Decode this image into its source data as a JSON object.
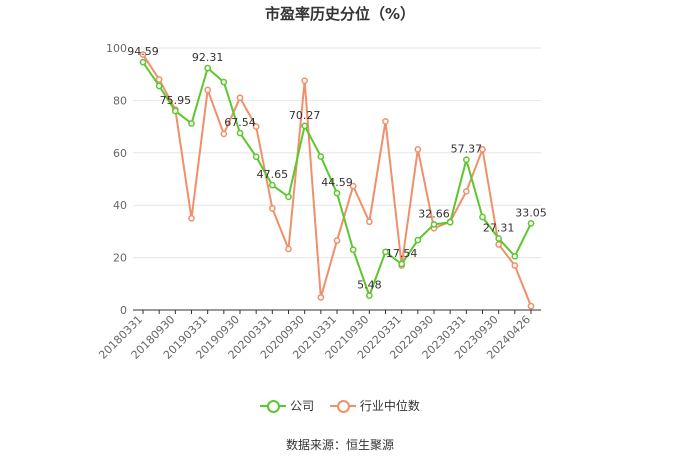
{
  "chart_data": {
    "type": "line",
    "title": "市盈率历史分位（%）",
    "ylim": [
      0,
      100
    ],
    "yticks": [
      0,
      20,
      40,
      60,
      80,
      100
    ],
    "x_tick_labels": [
      "20180331",
      "20180930",
      "20190331",
      "20190930",
      "20200331",
      "20200930",
      "20210331",
      "20210930",
      "20220331",
      "20220930",
      "20230331",
      "20230930",
      "20240426"
    ],
    "series": [
      {
        "name": "公司",
        "color": "#5cc72e",
        "values": [
          94.59,
          85.5,
          75.95,
          71.2,
          92.31,
          87.0,
          67.54,
          58.5,
          47.65,
          43.2,
          70.27,
          58.6,
          44.59,
          23.0,
          5.48,
          22.2,
          17.54,
          26.7,
          32.66,
          33.5,
          57.37,
          35.5,
          27.31,
          20.5,
          33.05
        ],
        "data_labels": [
          {
            "index": 0,
            "text": "94.59"
          },
          {
            "index": 2,
            "text": "75.95"
          },
          {
            "index": 4,
            "text": "92.31"
          },
          {
            "index": 6,
            "text": "67.54"
          },
          {
            "index": 8,
            "text": "47.65"
          },
          {
            "index": 10,
            "text": "70.27"
          },
          {
            "index": 12,
            "text": "44.59"
          },
          {
            "index": 14,
            "text": "5.48"
          },
          {
            "index": 16,
            "text": "17.54"
          },
          {
            "index": 18,
            "text": "32.66"
          },
          {
            "index": 20,
            "text": "57.37"
          },
          {
            "index": 22,
            "text": "27.31"
          },
          {
            "index": 24,
            "text": "33.05"
          }
        ]
      },
      {
        "name": "行业中位数",
        "color": "#f0906a",
        "values": [
          97.5,
          88.0,
          76.5,
          35.0,
          84.0,
          67.2,
          81.0,
          70.0,
          38.8,
          23.3,
          87.5,
          4.8,
          26.5,
          47.3,
          33.7,
          72.0,
          17.0,
          61.3,
          31.2,
          33.7,
          45.3,
          61.3,
          25.0,
          17.0,
          1.5
        ]
      }
    ],
    "legend": "bottom",
    "grid": true
  },
  "source_text": "数据来源：恒生聚源"
}
